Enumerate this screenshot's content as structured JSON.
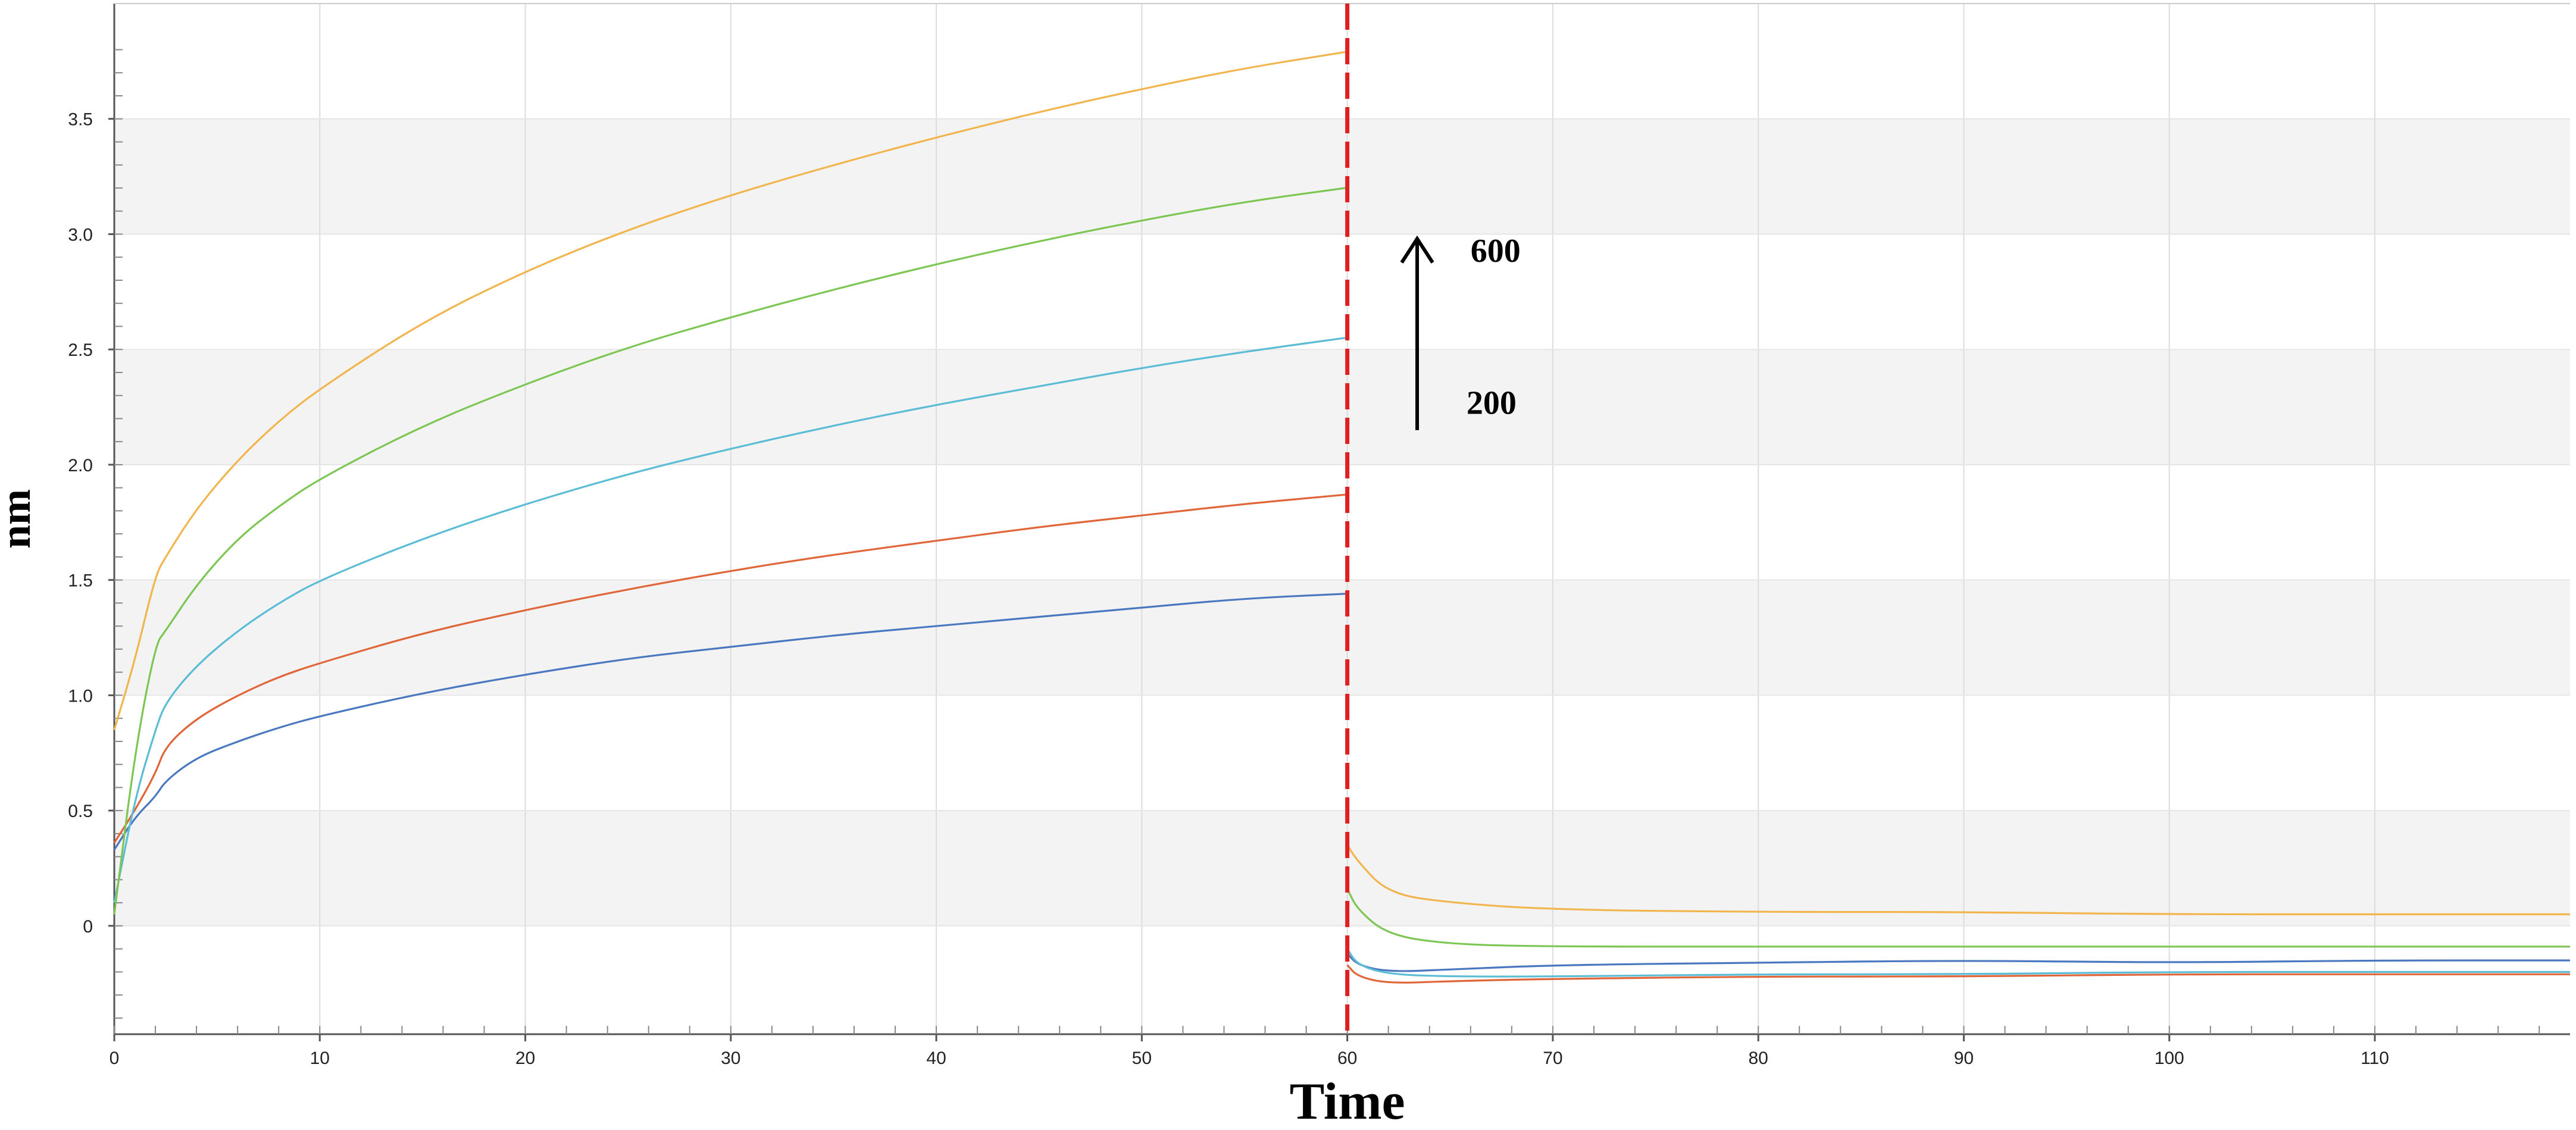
{
  "chart_data": {
    "type": "line",
    "title": "",
    "xlabel": "Time",
    "ylabel": "nm",
    "xlim": [
      0,
      119.5
    ],
    "ylim": [
      -0.47,
      4.0
    ],
    "x_ticks": [
      0,
      10,
      20,
      30,
      40,
      50,
      60,
      70,
      80,
      90,
      100,
      110
    ],
    "x_tick_labels": [
      "0",
      "10",
      "20",
      "30",
      "40",
      "50",
      "60",
      "70",
      "80",
      "90",
      "100",
      "110"
    ],
    "y_ticks": [
      0,
      0.5,
      1.0,
      1.5,
      2.0,
      2.5,
      3.0,
      3.5
    ],
    "y_tick_labels": [
      "0",
      "0.5",
      "1.0",
      "1.5",
      "2.0",
      "2.5",
      "3.0",
      "3.5"
    ],
    "grid": true,
    "alternating_bands": true,
    "vertical_marker": {
      "x": 60,
      "color": "#e02020",
      "style": "dashed"
    },
    "annotations": [
      {
        "text": "600",
        "x": 66.0,
        "y": 2.88
      },
      {
        "text": "200",
        "x": 65.8,
        "y": 2.22
      }
    ],
    "arrow": {
      "x": 63.4,
      "y_from": 2.15,
      "y_to": 2.98
    },
    "series": [
      {
        "color": "#4a78c0",
        "x": [
          0,
          1,
          2,
          2.5,
          4,
          6,
          8,
          10,
          15,
          20,
          25,
          30,
          35,
          40,
          45,
          50,
          55,
          59.9,
          60,
          60.5,
          62,
          65,
          70,
          80,
          90,
          100,
          110,
          119.5
        ],
        "y": [
          0.33,
          0.47,
          0.56,
          0.63,
          0.73,
          0.8,
          0.86,
          0.91,
          1.01,
          1.09,
          1.16,
          1.21,
          1.26,
          1.3,
          1.34,
          1.38,
          1.42,
          1.44,
          -0.12,
          -0.17,
          -0.2,
          -0.19,
          -0.17,
          -0.16,
          -0.15,
          -0.16,
          -0.15,
          -0.15
        ]
      },
      {
        "color": "#e0663a",
        "x": [
          0,
          1,
          2,
          2.5,
          4,
          6,
          8,
          10,
          15,
          20,
          25,
          30,
          35,
          40,
          45,
          50,
          55,
          59.9,
          60,
          60.5,
          62,
          65,
          70,
          80,
          90,
          100,
          110,
          119.5
        ],
        "y": [
          0.36,
          0.5,
          0.66,
          0.78,
          0.9,
          1.0,
          1.08,
          1.14,
          1.27,
          1.37,
          1.46,
          1.54,
          1.61,
          1.67,
          1.73,
          1.78,
          1.83,
          1.87,
          -0.17,
          -0.22,
          -0.25,
          -0.24,
          -0.23,
          -0.22,
          -0.22,
          -0.21,
          -0.21,
          -0.21
        ]
      },
      {
        "color": "#5bbcd6",
        "x": [
          0,
          1,
          2,
          2.5,
          4,
          6,
          8,
          10,
          15,
          20,
          25,
          30,
          35,
          40,
          45,
          50,
          55,
          59.9,
          60,
          60.5,
          62,
          65,
          70,
          80,
          90,
          100,
          110,
          119.5
        ],
        "y": [
          0.1,
          0.55,
          0.85,
          0.97,
          1.13,
          1.28,
          1.4,
          1.5,
          1.68,
          1.83,
          1.96,
          2.07,
          2.17,
          2.26,
          2.34,
          2.42,
          2.49,
          2.55,
          -0.1,
          -0.17,
          -0.21,
          -0.22,
          -0.22,
          -0.21,
          -0.21,
          -0.2,
          -0.2,
          -0.2
        ]
      },
      {
        "color": "#7cc653",
        "x": [
          0,
          1,
          2,
          2.5,
          4,
          6,
          8,
          10,
          15,
          20,
          25,
          30,
          35,
          40,
          45,
          50,
          55,
          59.9,
          60,
          60.5,
          62,
          65,
          70,
          80,
          90,
          100,
          110,
          119.5
        ],
        "y": [
          0.05,
          0.75,
          1.22,
          1.28,
          1.48,
          1.68,
          1.82,
          1.94,
          2.17,
          2.35,
          2.51,
          2.64,
          2.76,
          2.87,
          2.97,
          3.06,
          3.14,
          3.2,
          0.16,
          0.07,
          -0.04,
          -0.08,
          -0.09,
          -0.09,
          -0.09,
          -0.09,
          -0.09,
          -0.09
        ]
      },
      {
        "color": "#f2b54d",
        "x": [
          0,
          1,
          2,
          2.5,
          4,
          6,
          8,
          10,
          15,
          20,
          25,
          30,
          35,
          40,
          45,
          50,
          55,
          59.9,
          60,
          60.5,
          62,
          65,
          70,
          80,
          90,
          100,
          110,
          119.5
        ],
        "y": [
          0.85,
          1.15,
          1.52,
          1.6,
          1.81,
          2.02,
          2.19,
          2.33,
          2.62,
          2.84,
          3.02,
          3.17,
          3.3,
          3.42,
          3.53,
          3.63,
          3.72,
          3.79,
          0.35,
          0.28,
          0.14,
          0.1,
          0.07,
          0.06,
          0.06,
          0.05,
          0.05,
          0.05
        ]
      }
    ]
  }
}
